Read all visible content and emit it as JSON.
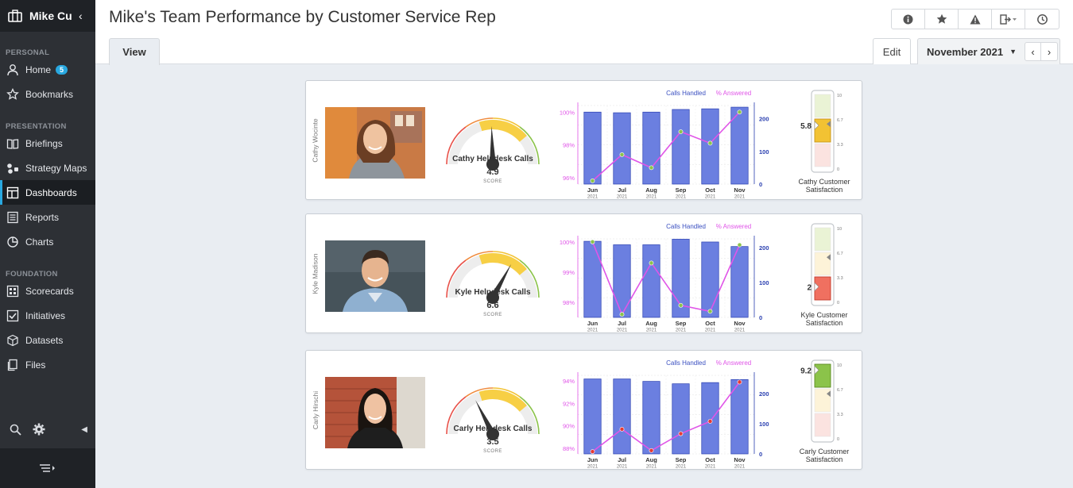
{
  "app": {
    "org_name": "Mike Cu",
    "page_title": "Mike's Team Performance by Customer Service Rep"
  },
  "sidebar": {
    "sections": [
      {
        "label": "PERSONAL",
        "items": [
          {
            "label": "Home",
            "icon": "user-icon",
            "badge": "5"
          },
          {
            "label": "Bookmarks",
            "icon": "star-icon"
          }
        ]
      },
      {
        "label": "PRESENTATION",
        "items": [
          {
            "label": "Briefings",
            "icon": "book-icon"
          },
          {
            "label": "Strategy Maps",
            "icon": "strategy-map-icon"
          },
          {
            "label": "Dashboards",
            "icon": "dashboard-icon",
            "active": true
          },
          {
            "label": "Reports",
            "icon": "report-icon"
          },
          {
            "label": "Charts",
            "icon": "pie-chart-icon"
          }
        ]
      },
      {
        "label": "FOUNDATION",
        "items": [
          {
            "label": "Scorecards",
            "icon": "scorecard-icon"
          },
          {
            "label": "Initiatives",
            "icon": "checkbox-icon"
          },
          {
            "label": "Datasets",
            "icon": "cube-icon"
          },
          {
            "label": "Files",
            "icon": "files-icon"
          }
        ]
      }
    ]
  },
  "tabs": {
    "view": "View",
    "edit": "Edit",
    "period": "November 2021"
  },
  "toolbar": [
    "info-icon",
    "star-icon",
    "warning-icon",
    "export-icon",
    "history-icon"
  ],
  "colors": {
    "sidebar_bg": "#2d3035",
    "accent": "#29a8e0",
    "bar": "#6b7fe0",
    "line": "#e055e8",
    "calls_axis": "#2a3fb0"
  },
  "chart_data": [
    {
      "type": "bar",
      "rep": "Cathy Wocinte",
      "gauge_title": "Cathy Helpdesk Calls",
      "score": "4.9",
      "score_label": "SCORE",
      "score_value": 4.9,
      "months": [
        "Jun",
        "Jul",
        "Aug",
        "Sep",
        "Oct",
        "Nov"
      ],
      "years": [
        "2021",
        "2021",
        "2021",
        "2021",
        "2021",
        "2021"
      ],
      "legend": [
        "Calls Handled",
        "% Answered"
      ],
      "series": [
        {
          "name": "Calls Handled",
          "values": [
            220,
            218,
            220,
            228,
            230,
            235
          ]
        },
        {
          "name": "% Answered",
          "values": [
            95.8,
            97.4,
            96.6,
            98.8,
            98.1,
            100.0
          ]
        }
      ],
      "left_ticks": [
        "100%",
        "98%",
        "96%"
      ],
      "left_range": [
        95.6,
        100.4
      ],
      "right_ticks": [
        "200",
        "100",
        "0"
      ],
      "right_range": [
        0,
        240
      ],
      "marker_color": "#8bc34a",
      "satisfaction_label": "Cathy Customer Satisfaction",
      "satisfaction_value": "5.8",
      "satisfaction_number": 5.8,
      "satisfaction_ticks": [
        "10",
        "6.7",
        "3.3",
        "0"
      ]
    },
    {
      "type": "bar",
      "rep": "Kyle Madison",
      "gauge_title": "Kyle Helpdesk Calls",
      "score": "6.6",
      "score_label": "SCORE",
      "score_value": 6.6,
      "months": [
        "Jun",
        "Jul",
        "Aug",
        "Sep",
        "Oct",
        "Nov"
      ],
      "years": [
        "2021",
        "2021",
        "2021",
        "2021",
        "2021",
        "2021"
      ],
      "legend": [
        "Calls Handled",
        "% Answered"
      ],
      "series": [
        {
          "name": "Calls Handled",
          "values": [
            218,
            208,
            208,
            224,
            216,
            203
          ]
        },
        {
          "name": "% Answered",
          "values": [
            100.0,
            97.6,
            99.3,
            97.9,
            97.7,
            99.9
          ]
        }
      ],
      "left_ticks": [
        "100%",
        "99%",
        "98%"
      ],
      "left_range": [
        97.5,
        100.1
      ],
      "right_ticks": [
        "200",
        "100",
        "0"
      ],
      "right_range": [
        0,
        225
      ],
      "marker_color": "#8bc34a",
      "satisfaction_label": "Kyle Customer Satisfaction",
      "satisfaction_value": "2",
      "satisfaction_number": 2,
      "satisfaction_ticks": [
        "10",
        "6.7",
        "3.3",
        "0"
      ]
    },
    {
      "type": "bar",
      "rep": "Carly Hirschi",
      "gauge_title": "Carly Helpdesk Calls",
      "score": "3.5",
      "score_label": "SCORE",
      "score_value": 3.5,
      "months": [
        "Jun",
        "Jul",
        "Aug",
        "Sep",
        "Oct",
        "Nov"
      ],
      "years": [
        "2021",
        "2021",
        "2021",
        "2021",
        "2021",
        "2021"
      ],
      "legend": [
        "Calls Handled",
        "% Answered"
      ],
      "series": [
        {
          "name": "Calls Handled",
          "values": [
            248,
            248,
            240,
            232,
            236,
            246
          ]
        },
        {
          "name": "% Answered",
          "values": [
            87.7,
            89.7,
            87.8,
            89.3,
            90.4,
            93.9
          ]
        }
      ],
      "left_ticks": [
        "94%",
        "92%",
        "90%",
        "88%"
      ],
      "left_range": [
        87.5,
        94.5
      ],
      "right_ticks": [
        "200",
        "100",
        "0"
      ],
      "right_range": [
        0,
        260
      ],
      "marker_color": "#e53935",
      "satisfaction_label": "Carly Customer Satisfaction",
      "satisfaction_value": "9.2",
      "satisfaction_number": 9.2,
      "satisfaction_ticks": [
        "10",
        "6.7",
        "3.3",
        "0"
      ]
    }
  ]
}
